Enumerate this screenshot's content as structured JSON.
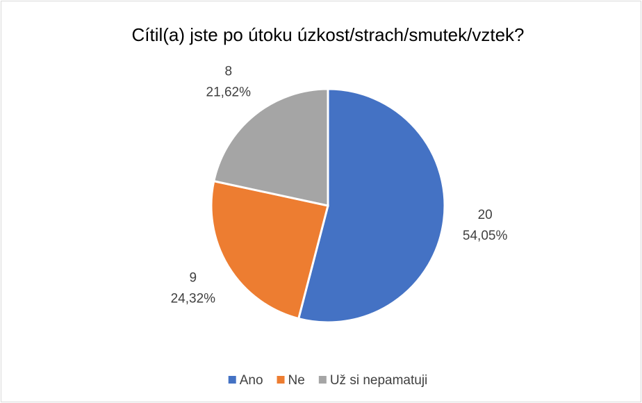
{
  "chart_data": {
    "type": "pie",
    "title": "Cítil(a) jste po útoku úzkost/strach/smutek/vztek?",
    "categories": [
      "Ano",
      "Ne",
      "Už si nepamatuji"
    ],
    "values": [
      20,
      9,
      8
    ],
    "percentages": [
      54.05,
      24.32,
      21.62
    ],
    "percentage_labels": [
      "54,05%",
      "24,32%",
      "21,62%"
    ],
    "colors": [
      "#4472c4",
      "#ed7d31",
      "#a5a5a5"
    ],
    "legend": "bottom"
  }
}
